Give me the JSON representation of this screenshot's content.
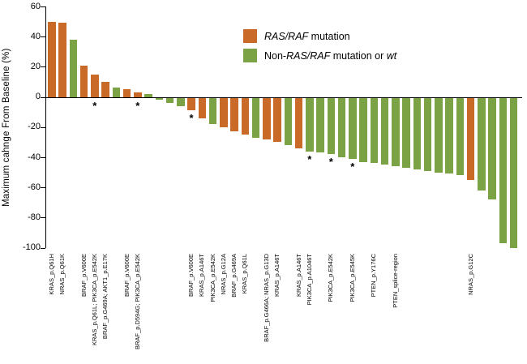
{
  "figure": {
    "y_axis_label": "Maximum cahnge From Baseline (%)"
  },
  "colors": {
    "ras_raf": "#c96a28",
    "non_ras_raf": "#7ba245",
    "axis": "#000000"
  },
  "legend": {
    "ras": {
      "italic": "RAS/RAF",
      "rest": " mutation"
    },
    "non": {
      "pre": "Non-",
      "italic": "RAS/RAF",
      "mid": " mutation or ",
      "italic2": "wt"
    }
  },
  "chart_data": {
    "type": "bar",
    "subtype": "waterfall",
    "title": "",
    "xlabel": "",
    "ylabel": "Maximum cahnge From Baseline (%)",
    "ylim": [
      -100,
      60
    ],
    "yticks": [
      60,
      40,
      20,
      0,
      -20,
      -40,
      -60,
      -80,
      -100
    ],
    "grid": false,
    "legend_position": "upper-center-right",
    "legend": [
      {
        "name": "RAS/RAF mutation",
        "color": "#c96a28"
      },
      {
        "name": "Non-RAS/RAF mutation or wt",
        "color": "#7ba245"
      }
    ],
    "star_note": "asterisk below bar indicates annotated patient",
    "bars": [
      {
        "value": 50,
        "group": "ras_raf",
        "label": "KRAS_p.Q61H",
        "star": false
      },
      {
        "value": 49,
        "group": "ras_raf",
        "label": "NRAS_p.Q61K",
        "star": false
      },
      {
        "value": 38,
        "group": "non_ras_raf",
        "label": "",
        "star": false
      },
      {
        "value": 21,
        "group": "ras_raf",
        "label": "BRAF_p.V600E",
        "star": false
      },
      {
        "value": 15,
        "group": "ras_raf",
        "label": "KRAS_p.Q61L; PIK3CA_p.E542K",
        "star": true
      },
      {
        "value": 10,
        "group": "ras_raf",
        "label": "BRAF_p.G469A; AKT1_p.E17K",
        "star": false
      },
      {
        "value": 6,
        "group": "non_ras_raf",
        "label": "",
        "star": false
      },
      {
        "value": 5,
        "group": "ras_raf",
        "label": "BRAF_p.V600E",
        "star": false
      },
      {
        "value": 3,
        "group": "ras_raf",
        "label": "BRAF_p.D594G; PIK3CA_p.E542K",
        "star": true
      },
      {
        "value": 2,
        "group": "non_ras_raf",
        "label": "",
        "star": false
      },
      {
        "value": -2,
        "group": "non_ras_raf",
        "label": "",
        "star": false
      },
      {
        "value": -4,
        "group": "non_ras_raf",
        "label": "",
        "star": false
      },
      {
        "value": -6,
        "group": "non_ras_raf",
        "label": "",
        "star": false
      },
      {
        "value": -9,
        "group": "ras_raf",
        "label": "BRAF_p.V600E",
        "star": true
      },
      {
        "value": -14,
        "group": "ras_raf",
        "label": "KRAS_p.A146T",
        "star": false
      },
      {
        "value": -18,
        "group": "non_ras_raf",
        "label": "PIK3CA_p.E542K",
        "star": false
      },
      {
        "value": -20,
        "group": "ras_raf",
        "label": "NRAS_p.G12A",
        "star": false
      },
      {
        "value": -23,
        "group": "ras_raf",
        "label": "BRAF_p.G469A",
        "star": false
      },
      {
        "value": -25,
        "group": "ras_raf",
        "label": "KRAS_p.Q61L",
        "star": false
      },
      {
        "value": -27,
        "group": "non_ras_raf",
        "label": "",
        "star": false
      },
      {
        "value": -28,
        "group": "ras_raf",
        "label": "BRAF_p.G466A; NRAS_p.G13D",
        "star": false
      },
      {
        "value": -30,
        "group": "ras_raf",
        "label": "KRAS_p.A146T",
        "star": false
      },
      {
        "value": -32,
        "group": "non_ras_raf",
        "label": "",
        "star": false
      },
      {
        "value": -34,
        "group": "ras_raf",
        "label": "KRAS_p.A146T",
        "star": false
      },
      {
        "value": -36,
        "group": "non_ras_raf",
        "label": "PIK3CA_p.A1046T",
        "star": true
      },
      {
        "value": -37,
        "group": "non_ras_raf",
        "label": "",
        "star": false
      },
      {
        "value": -38,
        "group": "non_ras_raf",
        "label": "PIK3CA_p.E542K",
        "star": true
      },
      {
        "value": -40,
        "group": "non_ras_raf",
        "label": "",
        "star": false
      },
      {
        "value": -41,
        "group": "non_ras_raf",
        "label": "PIK3CA_p.E545K",
        "star": true
      },
      {
        "value": -43,
        "group": "non_ras_raf",
        "label": "",
        "star": false
      },
      {
        "value": -44,
        "group": "non_ras_raf",
        "label": "PTEN_p.Y176C",
        "star": false
      },
      {
        "value": -45,
        "group": "non_ras_raf",
        "label": "",
        "star": false
      },
      {
        "value": -46,
        "group": "non_ras_raf",
        "label": "PTEN_splice-region",
        "star": false
      },
      {
        "value": -47,
        "group": "non_ras_raf",
        "label": "",
        "star": false
      },
      {
        "value": -48,
        "group": "non_ras_raf",
        "label": "",
        "star": false
      },
      {
        "value": -49,
        "group": "non_ras_raf",
        "label": "",
        "star": false
      },
      {
        "value": -50,
        "group": "non_ras_raf",
        "label": "",
        "star": false
      },
      {
        "value": -51,
        "group": "non_ras_raf",
        "label": "",
        "star": false
      },
      {
        "value": -52,
        "group": "non_ras_raf",
        "label": "",
        "star": false
      },
      {
        "value": -55,
        "group": "ras_raf",
        "label": "NRAS_p.G12C",
        "star": false
      },
      {
        "value": -62,
        "group": "non_ras_raf",
        "label": "",
        "star": false
      },
      {
        "value": -68,
        "group": "non_ras_raf",
        "label": "",
        "star": false
      },
      {
        "value": -97,
        "group": "non_ras_raf",
        "label": "",
        "star": false
      },
      {
        "value": -100,
        "group": "non_ras_raf",
        "label": "",
        "star": false
      }
    ]
  }
}
